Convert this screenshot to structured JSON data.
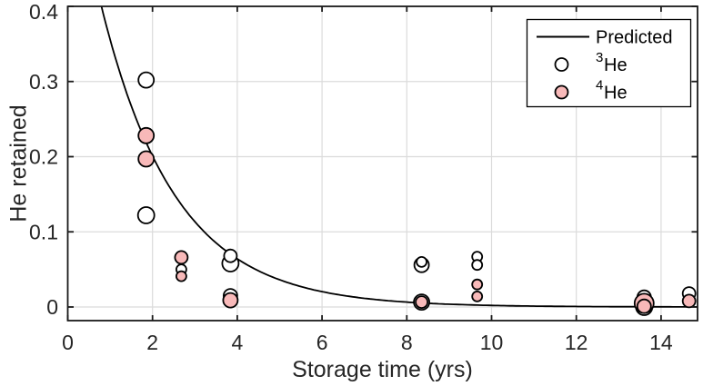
{
  "chart_data": {
    "type": "scatter",
    "title": "",
    "xlabel": "Storage time (yrs)",
    "ylabel": "He retained",
    "xlim": [
      0,
      14.9
    ],
    "ylim": [
      -0.018,
      0.4
    ],
    "xticks": [
      0,
      2,
      4,
      6,
      8,
      10,
      12,
      14
    ],
    "xtick_labels": [
      "0",
      "2",
      "4",
      "6",
      "8",
      "10",
      "12",
      "14"
    ],
    "yticks": [
      0,
      0.1,
      0.2,
      0.3,
      0.4
    ],
    "ytick_labels": [
      "0",
      "0.1",
      "0.2",
      "0.3",
      "0.4"
    ],
    "grid": true,
    "legend": {
      "position": "northeast",
      "entries": [
        {
          "id": "predicted",
          "marker": "line",
          "sup": "",
          "label": "Predicted"
        },
        {
          "id": "he3",
          "marker": "circle-open",
          "sup": "3",
          "label": "He"
        },
        {
          "id": "he4",
          "marker": "circle-filled",
          "sup": "4",
          "label": "He"
        }
      ]
    },
    "predicted_curve": {
      "model": "y = A * exp(-t / tau)",
      "A": 0.63,
      "tau_yrs": 1.75,
      "samples_t": [
        1,
        2,
        3,
        4,
        5,
        6,
        8,
        10,
        12,
        14
      ],
      "samples_y": [
        0.356,
        0.201,
        0.114,
        0.064,
        0.036,
        0.02,
        0.0065,
        0.0021,
        0.0007,
        0.0002
      ]
    },
    "series": [
      {
        "name": "3He",
        "fill": "#ffffff",
        "points": [
          [
            1.85,
            0.302,
            17
          ],
          [
            1.85,
            0.122,
            18
          ],
          [
            2.68,
            0.05,
            11
          ],
          [
            3.84,
            0.058,
            18
          ],
          [
            3.84,
            0.068,
            14
          ],
          [
            3.84,
            0.015,
            15
          ],
          [
            8.35,
            0.056,
            16
          ],
          [
            8.35,
            0.06,
            11
          ],
          [
            8.35,
            0.0065,
            17
          ],
          [
            9.66,
            0.067,
            11
          ],
          [
            9.66,
            0.056,
            11
          ],
          [
            13.6,
            0.013,
            15
          ],
          [
            13.6,
            0.0,
            18
          ],
          [
            14.66,
            0.018,
            14
          ]
        ]
      },
      {
        "name": "4He",
        "fill": "#f8b9b9",
        "points": [
          [
            1.85,
            0.228,
            17
          ],
          [
            1.85,
            0.197,
            17
          ],
          [
            2.68,
            0.066,
            14
          ],
          [
            2.68,
            0.041,
            11
          ],
          [
            3.84,
            0.009,
            16
          ],
          [
            8.35,
            0.0065,
            13
          ],
          [
            9.66,
            0.03,
            11
          ],
          [
            9.66,
            0.014,
            11
          ],
          [
            13.6,
            0.005,
            21
          ],
          [
            13.6,
            0.001,
            15
          ],
          [
            14.66,
            0.008,
            14
          ]
        ]
      }
    ],
    "colors": {
      "curve": "#000000",
      "marker_edge": "#000000",
      "he3_fill": "#ffffff",
      "he4_fill": "#f8b9b9",
      "grid": "#dbdbdb",
      "axis": "#1a1a1a",
      "tick_label": "#262626",
      "background": "#ffffff"
    }
  }
}
